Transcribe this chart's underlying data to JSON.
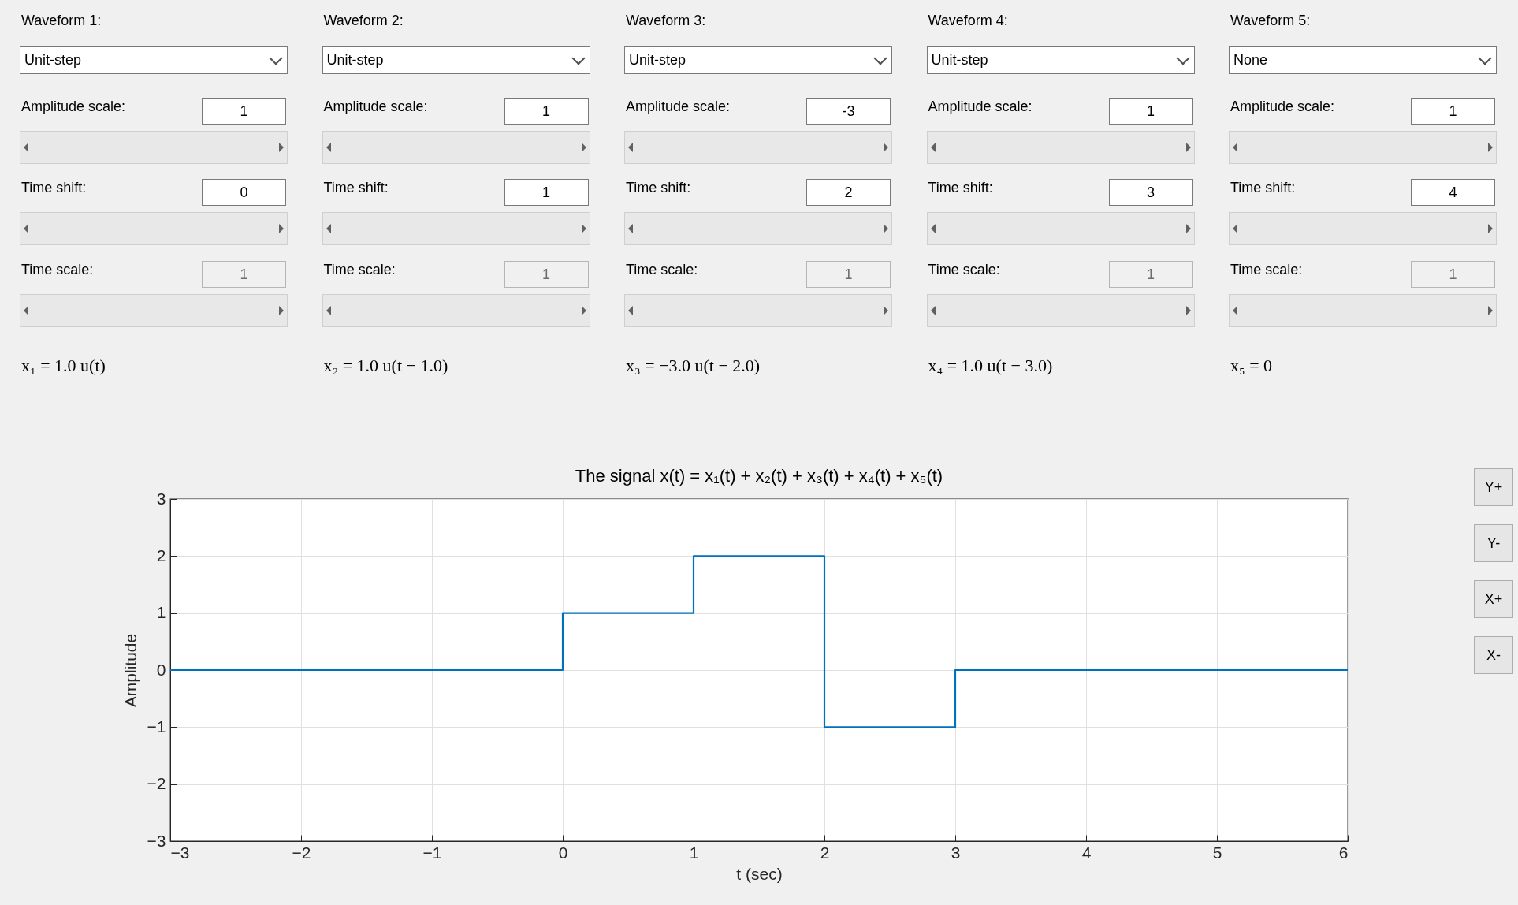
{
  "chart_data": [
    {
      "type": "other",
      "title": "Waveform 1:",
      "annotations": [
        "Unit-step",
        "Amplitude scale:",
        "1",
        "Time shift:",
        "0",
        "Time scale:",
        "1",
        "x₁ = 1.0 u(t)"
      ]
    },
    {
      "type": "other",
      "title": "Waveform 2:",
      "annotations": [
        "Unit-step",
        "Amplitude scale:",
        "1",
        "Time shift:",
        "1",
        "Time scale:",
        "1",
        "x₂ = 1.0 u(t − 1.0)"
      ]
    },
    {
      "type": "other",
      "title": "Waveform 3:",
      "annotations": [
        "Unit-step",
        "Amplitude scale:",
        "-3",
        "Time shift:",
        "2",
        "Time scale:",
        "1",
        "x₃ = −3.0 u(t − 2.0)"
      ]
    },
    {
      "type": "other",
      "title": "Waveform 4:",
      "annotations": [
        "Unit-step",
        "Amplitude scale:",
        "1",
        "Time shift:",
        "3",
        "Time scale:",
        "1",
        "x₄ = 1.0 u(t − 3.0)"
      ]
    },
    {
      "type": "other",
      "title": "Waveform 5:",
      "annotations": [
        "None",
        "Amplitude scale:",
        "1",
        "Time shift:",
        "4",
        "Time scale:",
        "1",
        "x₅ = 0"
      ]
    },
    {
      "type": "step",
      "title": "The signal  x(t) = x₁(t) + x₂(t) + x₃(t) + x₄(t) + x₅(t)",
      "xlabel": "t (sec)",
      "ylabel": "Amplitude",
      "x": [
        -3,
        0,
        1,
        2,
        3,
        6
      ],
      "values": [
        0,
        1,
        2,
        -1,
        0,
        0
      ],
      "color": "#0072bd",
      "xlim": [
        -3,
        6
      ],
      "xticks": [
        -3,
        -2,
        -1,
        0,
        1,
        2,
        3,
        4,
        5,
        6
      ],
      "ylim": [
        -3,
        3
      ],
      "yticks": [
        -3,
        -2,
        -1,
        0,
        1,
        2,
        3
      ],
      "grid": true,
      "annotations": [
        "Y+",
        "Y-",
        "X+",
        "X-"
      ]
    }
  ]
}
